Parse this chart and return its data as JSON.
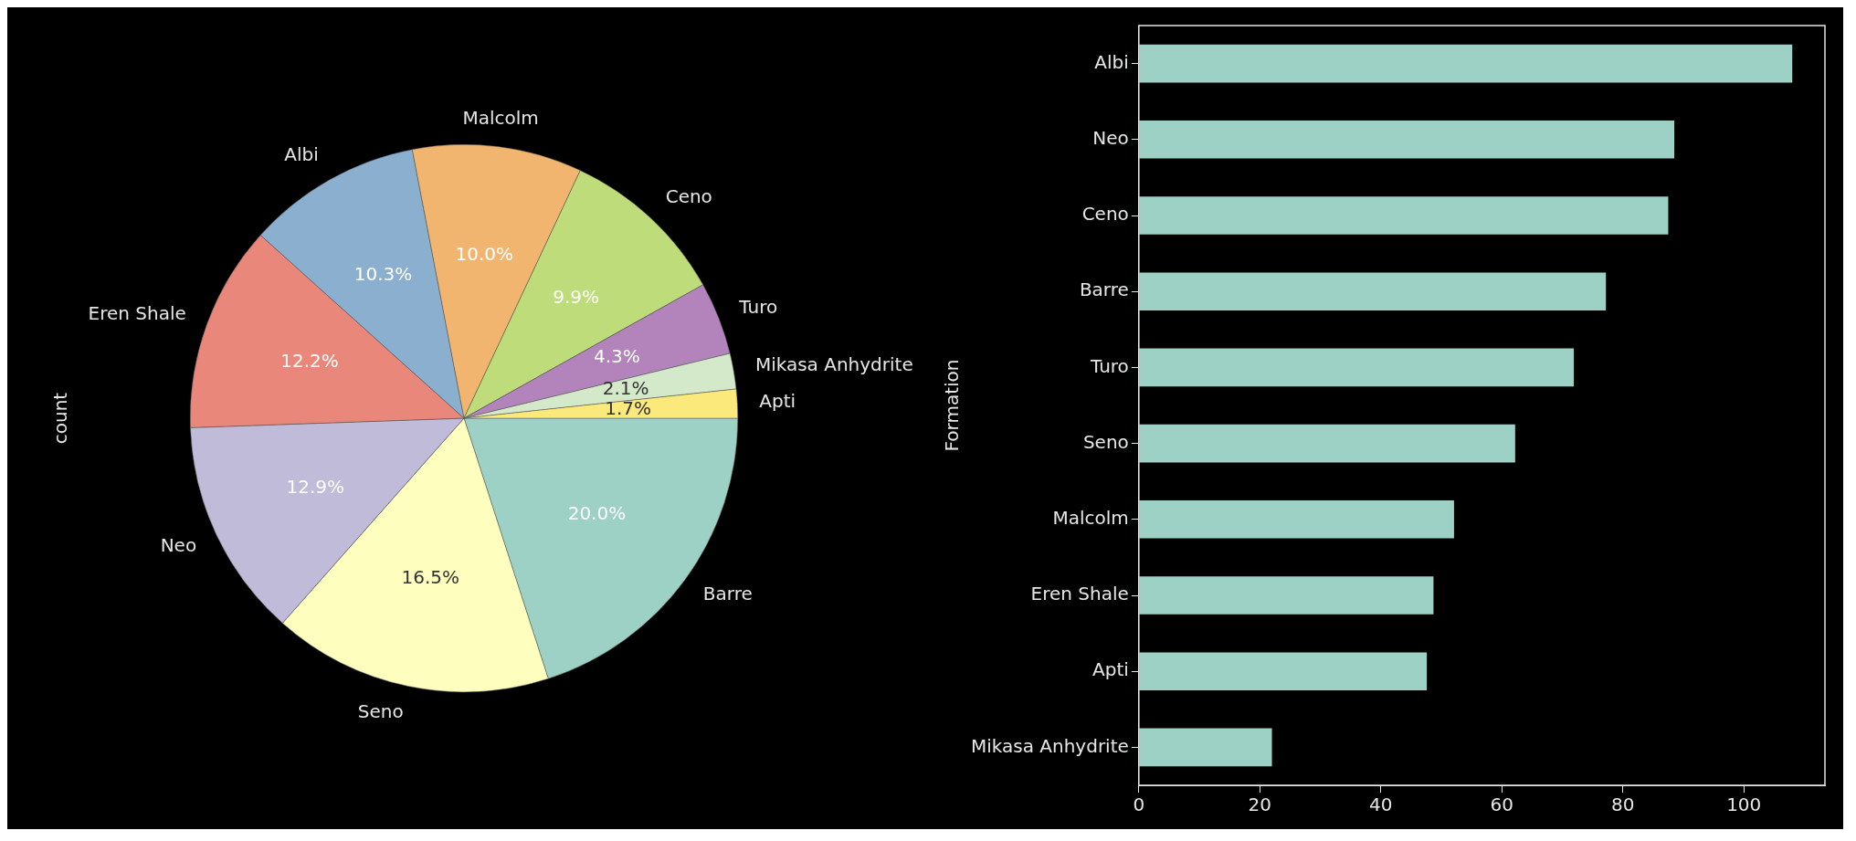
{
  "chart_data": [
    {
      "type": "pie",
      "ylabel": "count",
      "categories": [
        "Barre",
        "Seno",
        "Neo",
        "Eren Shale",
        "Albi",
        "Malcolm",
        "Ceno",
        "Turo",
        "Mikasa Anhydrite",
        "Apti"
      ],
      "values": [
        20.0,
        16.5,
        12.9,
        12.2,
        10.3,
        10.0,
        9.9,
        4.3,
        2.1,
        1.7
      ],
      "colors": [
        "#9ed1c6",
        "#feffbe",
        "#bfbbd9",
        "#e9877a",
        "#8bb0cf",
        "#f1b56f",
        "#bfdc7a",
        "#b284bb",
        "#d3e9c9",
        "#fbe97c"
      ],
      "value_labels": [
        "20.0%",
        "16.5%",
        "12.9%",
        "12.2%",
        "10.3%",
        "10.0%",
        "9.9%",
        "4.3%",
        "2.1%",
        "1.7%"
      ],
      "legend": false
    },
    {
      "type": "bar",
      "orientation": "horizontal",
      "ylabel": "Formation",
      "categories": [
        "Albi",
        "Neo",
        "Ceno",
        "Barre",
        "Turo",
        "Seno",
        "Malcolm",
        "Eren Shale",
        "Apti",
        "Mikasa Anhydrite"
      ],
      "values": [
        108,
        88.5,
        87.5,
        77.2,
        71.9,
        62.2,
        52.1,
        48.7,
        47.6,
        22
      ],
      "color": "#9ed1c6",
      "xlim": [
        0,
        113.4
      ],
      "xticks": [
        0,
        20,
        40,
        60,
        80,
        100
      ],
      "grid": false,
      "legend": false
    }
  ]
}
